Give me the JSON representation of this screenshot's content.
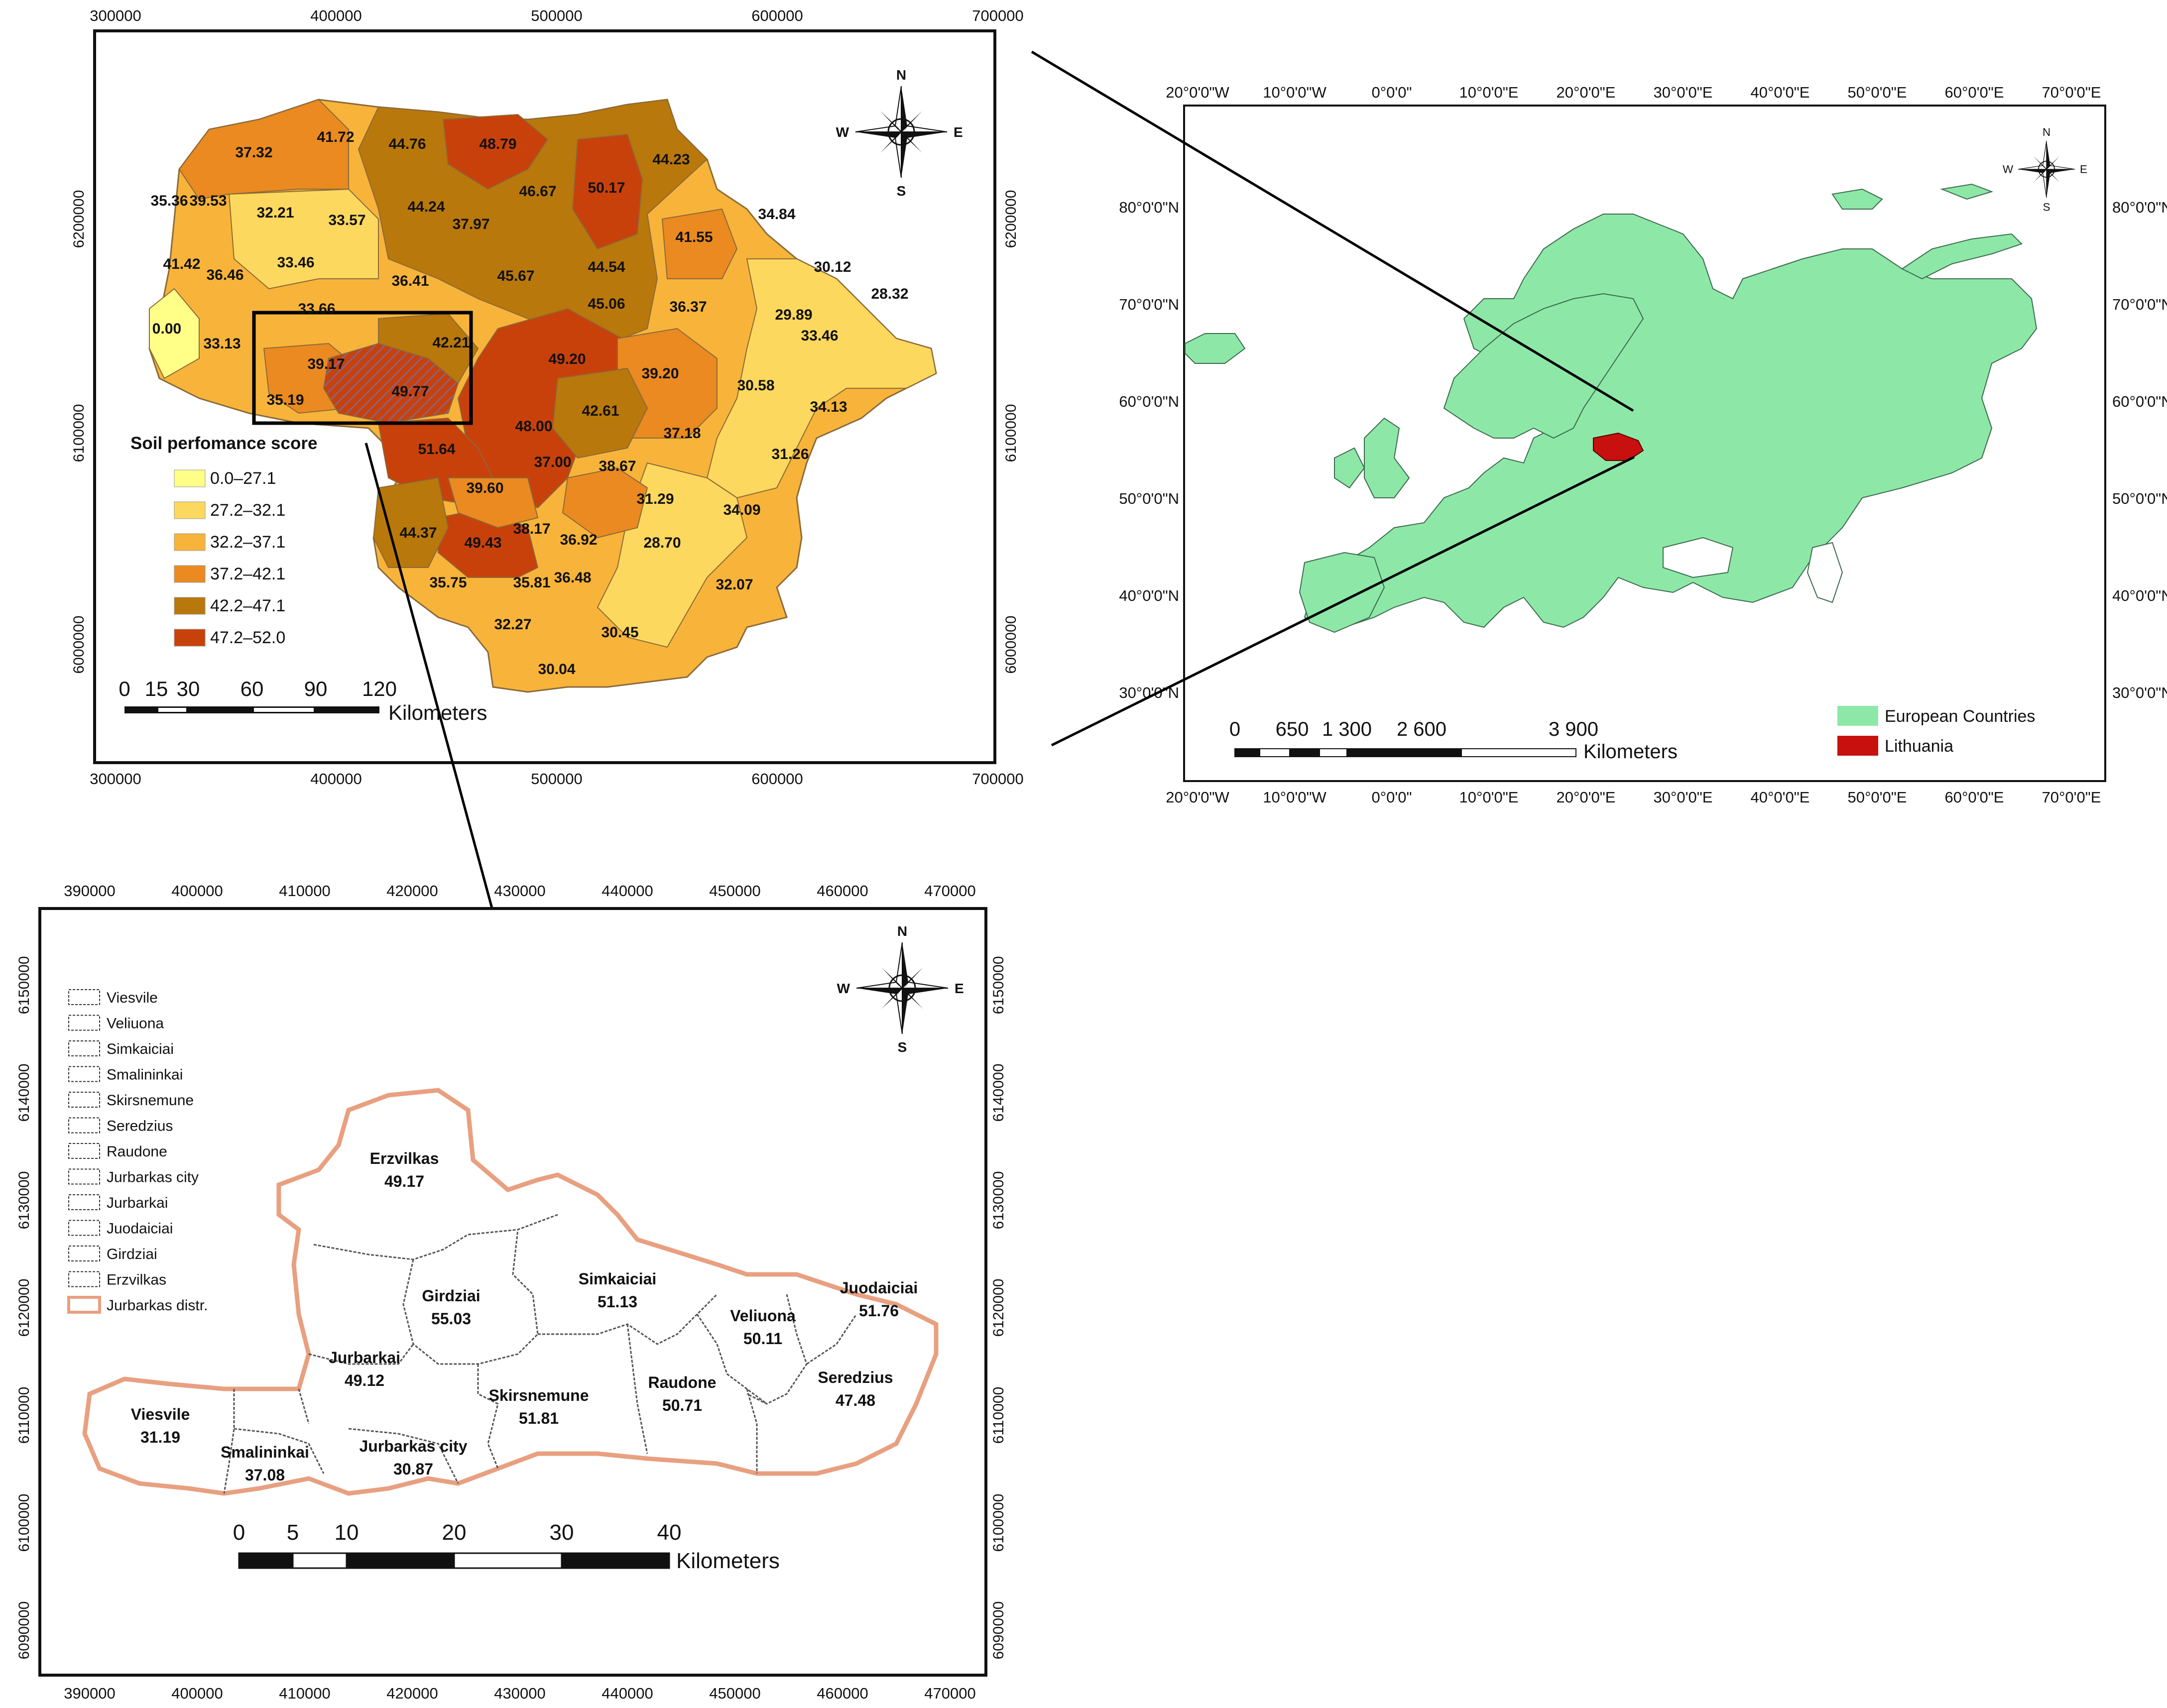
{
  "lithuania_map": {
    "x_ticks": [
      "300000",
      "400000",
      "500000",
      "600000",
      "700000"
    ],
    "y_ticks": [
      "6000000",
      "6100000",
      "6200000"
    ],
    "legend_title": "Soil perfomance score",
    "legend_classes": [
      {
        "label": "0.0–27.1",
        "color": "#ffff88"
      },
      {
        "label": "27.2–32.1",
        "color": "#fdd85e"
      },
      {
        "label": "32.2–37.1",
        "color": "#f8b43a"
      },
      {
        "label": "37.2–42.1",
        "color": "#ea8a20"
      },
      {
        "label": "42.2–47.1",
        "color": "#b9780b"
      },
      {
        "label": "47.2–52.0",
        "color": "#c8410b"
      }
    ],
    "scores": [
      "37.32",
      "41.72",
      "44.76",
      "48.79",
      "44.23",
      "35.36",
      "39.53",
      "32.21",
      "33.57",
      "44.24",
      "46.67",
      "50.17",
      "37.97",
      "34.84",
      "41.42",
      "33.46",
      "36.46",
      "36.41",
      "45.67",
      "44.54",
      "41.55",
      "30.12",
      "28.32",
      "33.66",
      "45.06",
      "36.37",
      "29.89",
      "0.00",
      "33.13",
      "42.21",
      "33.46",
      "39.17",
      "49.20",
      "39.20",
      "35.19",
      "49.77",
      "30.58",
      "34.13",
      "48.00",
      "42.61",
      "37.18",
      "51.64",
      "31.26",
      "37.00",
      "38.67",
      "39.60",
      "31.29",
      "34.09",
      "44.37",
      "38.17",
      "49.43",
      "36.92",
      "28.70",
      "35.75",
      "35.81",
      "36.48",
      "32.07",
      "32.27",
      "30.45",
      "30.04"
    ],
    "scalebar_labels": [
      "0",
      "15",
      "30",
      "60",
      "90",
      "120"
    ],
    "scalebar_unit": "Kilometers",
    "north_arrow": {
      "n": "N",
      "s": "S",
      "e": "E",
      "w": "W",
      "icon": "compass-rose-icon"
    }
  },
  "europe_map": {
    "x_ticks": [
      "20°0'0\"W",
      "10°0'0\"W",
      "0°0'0\"",
      "10°0'0\"E",
      "20°0'0\"E",
      "30°0'0\"E",
      "40°0'0\"E",
      "50°0'0\"E",
      "60°0'0\"E",
      "70°0'0\"E"
    ],
    "y_ticks": [
      "80°0'0\"N",
      "70°0'0\"N",
      "60°0'0\"N",
      "50°0'0\"N",
      "40°0'0\"N",
      "30°0'0\"N"
    ],
    "scalebar_labels": [
      "0",
      "650",
      "1 300",
      "2 600",
      "3 900"
    ],
    "scalebar_unit": "Kilometers",
    "legend": [
      {
        "label": "European Countries",
        "color": "#8de8a8"
      },
      {
        "label": "Lithuania",
        "color": "#c8100f"
      }
    ],
    "north_arrow": {
      "n": "N",
      "s": "S",
      "e": "E",
      "w": "W",
      "icon": "compass-rose-icon"
    }
  },
  "jurbarkas_map": {
    "x_ticks": [
      "390000",
      "400000",
      "410000",
      "420000",
      "430000",
      "440000",
      "450000",
      "460000",
      "470000"
    ],
    "y_ticks": [
      "6090000",
      "6100000",
      "6110000",
      "6120000",
      "6130000",
      "6140000",
      "6150000"
    ],
    "legend": [
      "Viesvile",
      "Veliuona",
      "Simkaiciai",
      "Smalininkai",
      "Skirsnemune",
      "Seredzius",
      "Raudone",
      "Jurbarkas city",
      "Jurbarkai",
      "Juodaiciai",
      "Girdziai",
      "Erzvilkas",
      "Jurbarkas distr."
    ],
    "districts": [
      {
        "name": "Erzvilkas",
        "score": "49.17"
      },
      {
        "name": "Girdziai",
        "score": "55.03"
      },
      {
        "name": "Simkaiciai",
        "score": "51.13"
      },
      {
        "name": "Veliuona",
        "score": "50.11"
      },
      {
        "name": "Juodaiciai",
        "score": "51.76"
      },
      {
        "name": "Jurbarkai",
        "score": "49.12"
      },
      {
        "name": "Raudone",
        "score": "50.71"
      },
      {
        "name": "Seredzius",
        "score": "47.48"
      },
      {
        "name": "Skirsnemune",
        "score": "51.81"
      },
      {
        "name": "Viesvile",
        "score": "31.19"
      },
      {
        "name": "Jurbarkas city",
        "score": "30.87"
      },
      {
        "name": "Smalininkai",
        "score": "37.08"
      }
    ],
    "scalebar_labels": [
      "0",
      "5",
      "10",
      "20",
      "30",
      "40"
    ],
    "scalebar_unit": "Kilometers",
    "north_arrow": {
      "n": "N",
      "s": "S",
      "e": "E",
      "w": "W",
      "icon": "compass-rose-icon"
    }
  }
}
